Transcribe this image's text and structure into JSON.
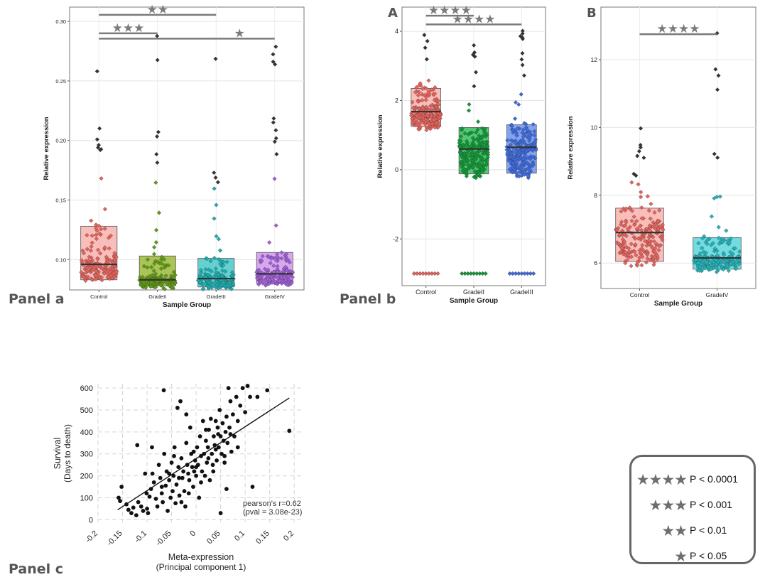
{
  "panel_labels": {
    "a": "Panel a",
    "b": "Panel b",
    "c": "Panel c"
  },
  "legend": [
    {
      "stars": "★★★★",
      "text": "P < 0.0001"
    },
    {
      "stars": "★★★",
      "text": "P < 0.001"
    },
    {
      "stars": "★★",
      "text": "P < 0.01"
    },
    {
      "stars": "★",
      "text": "P < 0.05"
    }
  ],
  "chart_data": [
    {
      "id": "panel-a",
      "type": "box",
      "subtitle": "",
      "xlabel": "Sample Group",
      "ylabel": "Relative expression",
      "categories": [
        "Control",
        "GradeII",
        "GradeIII",
        "GradeIV"
      ],
      "colors": [
        "#f7a8a3",
        "#8fb020",
        "#33c0c2",
        "#c98be8"
      ],
      "dot_colors": [
        "#e8625b",
        "#5e9c12",
        "#1aaeb0",
        "#a05ed8"
      ],
      "ylim": [
        0.0745,
        0.312
      ],
      "yticks": [
        0.1,
        0.15,
        0.2,
        0.25,
        0.3
      ],
      "ytick_labels": [
        "0.10",
        "0.15",
        "0.20",
        "0.25",
        "0.30"
      ],
      "boxes": [
        {
          "q1": 0.083,
          "median": 0.096,
          "q3": 0.128
        },
        {
          "q1": 0.078,
          "median": 0.083,
          "q3": 0.103
        },
        {
          "q1": 0.077,
          "median": 0.084,
          "q3": 0.101
        },
        {
          "q1": 0.08,
          "median": 0.088,
          "q3": 0.106
        }
      ],
      "ranges": [
        [
          0.082,
          0.29
        ],
        [
          0.075,
          0.289
        ],
        [
          0.075,
          0.269
        ],
        [
          0.073,
          0.294
        ]
      ],
      "significance": [
        {
          "from": 0,
          "to": 2,
          "y": 0.3055,
          "stars": "★★"
        },
        {
          "from": 0,
          "to": 1,
          "y": 0.29,
          "stars": "★★★"
        },
        {
          "from": 0,
          "to": 3,
          "y": 0.2855,
          "stars": "★"
        }
      ]
    },
    {
      "id": "panel-b-A",
      "type": "box",
      "subtitle": "A",
      "xlabel": "Sample Group",
      "ylabel": "Relative expression",
      "categories": [
        "Control",
        "GradeII",
        "GradeIII"
      ],
      "colors": [
        "#f7a8a3",
        "#1db34a",
        "#5b84e8"
      ],
      "dot_colors": [
        "#e8625b",
        "#0f9a35",
        "#3d6be0"
      ],
      "ylim": [
        -3.35,
        4.7
      ],
      "yticks": [
        -2,
        0,
        2,
        4
      ],
      "ytick_labels": [
        "-2",
        "0",
        "2",
        "4"
      ],
      "boxes": [
        {
          "q1": 1.25,
          "median": 1.68,
          "q3": 2.35
        },
        {
          "q1": -0.12,
          "median": 0.6,
          "q3": 1.22
        },
        {
          "q1": -0.1,
          "median": 0.65,
          "q3": 1.3
        }
      ],
      "ranges": [
        [
          -0.75,
          4.2
        ],
        [
          -1.35,
          4.05
        ],
        [
          -1.15,
          4.35
        ]
      ],
      "floor_value": -3.0,
      "significance": [
        {
          "from": 0,
          "to": 1,
          "y": 4.45,
          "stars": "★★★★"
        },
        {
          "from": 0,
          "to": 2,
          "y": 4.2,
          "stars": "★★★★"
        }
      ]
    },
    {
      "id": "panel-b-B",
      "type": "box",
      "subtitle": "B",
      "xlabel": "Sample Group",
      "ylabel": "Relative expression",
      "categories": [
        "Control",
        "GradeIV"
      ],
      "colors": [
        "#f7a8a3",
        "#46d0d6"
      ],
      "dot_colors": [
        "#e8625b",
        "#20b5bc"
      ],
      "ylim": [
        5.25,
        13.55
      ],
      "yticks": [
        6,
        8,
        10,
        12
      ],
      "ytick_labels": [
        "6",
        "8",
        "10",
        "12"
      ],
      "boxes": [
        {
          "q1": 6.05,
          "median": 6.9,
          "q3": 7.62
        },
        {
          "q1": 5.82,
          "median": 6.15,
          "q3": 6.75
        }
      ],
      "ranges": [
        [
          5.9,
          10.0
        ],
        [
          5.1,
          13.1
        ]
      ],
      "significance": [
        {
          "from": 0,
          "to": 1,
          "y": 12.75,
          "stars": "★★★★"
        }
      ]
    },
    {
      "id": "panel-c",
      "type": "scatter",
      "xlabel": "Meta-expression",
      "xlabel2": "(Principal component 1)",
      "ylabel": "Survival",
      "ylabel2": "(Days to death)",
      "xlim": [
        -0.2,
        0.22
      ],
      "ylim": [
        -12,
        620
      ],
      "xticks": [
        -0.2,
        -0.15,
        -0.1,
        -0.05,
        0,
        0.05,
        0.1,
        0.15,
        0.2
      ],
      "xtick_labels": [
        "-0.2",
        "-0.15",
        "-0.1",
        "-0.05",
        "0",
        "0.05",
        "0.1",
        "0.15",
        "0.2"
      ],
      "yticks": [
        0,
        100,
        200,
        300,
        400,
        500,
        600
      ],
      "ytick_labels": [
        "0",
        "100",
        "200",
        "300",
        "400",
        "500",
        "600"
      ],
      "fit": {
        "x0": -0.16,
        "y0": 45,
        "x1": 0.19,
        "y1": 555
      },
      "annotation": [
        "pearson's r=0.62",
        "(pval = 3.08e-23)"
      ],
      "points": [
        [
          -0.158,
          100
        ],
        [
          -0.155,
          85
        ],
        [
          -0.152,
          150
        ],
        [
          -0.142,
          70
        ],
        [
          -0.138,
          45
        ],
        [
          -0.132,
          30
        ],
        [
          -0.128,
          55
        ],
        [
          -0.122,
          20
        ],
        [
          -0.118,
          80
        ],
        [
          -0.112,
          60
        ],
        [
          -0.108,
          40
        ],
        [
          -0.104,
          210
        ],
        [
          -0.101,
          120
        ],
        [
          -0.098,
          30
        ],
        [
          -0.095,
          105
        ],
        [
          -0.092,
          140
        ],
        [
          -0.089,
          210
        ],
        [
          -0.086,
          170
        ],
        [
          -0.082,
          95
        ],
        [
          -0.079,
          60
        ],
        [
          -0.076,
          250
        ],
        [
          -0.073,
          190
        ],
        [
          -0.07,
          120
        ],
        [
          -0.068,
          80
        ],
        [
          -0.065,
          300
        ],
        [
          -0.062,
          155
        ],
        [
          -0.06,
          220
        ],
        [
          -0.058,
          40
        ],
        [
          -0.055,
          180
        ],
        [
          -0.052,
          100
        ],
        [
          -0.05,
          260
        ],
        [
          -0.048,
          130
        ],
        [
          -0.046,
          200
        ],
        [
          -0.044,
          330
        ],
        [
          -0.042,
          75
        ],
        [
          -0.04,
          160
        ],
        [
          -0.038,
          510
        ],
        [
          -0.036,
          240
        ],
        [
          -0.034,
          110
        ],
        [
          -0.032,
          540
        ],
        [
          -0.03,
          280
        ],
        [
          -0.028,
          190
        ],
        [
          -0.026,
          220
        ],
        [
          -0.024,
          130
        ],
        [
          -0.022,
          60
        ],
        [
          -0.02,
          350
        ],
        [
          -0.018,
          250
        ],
        [
          -0.016,
          210
        ],
        [
          -0.014,
          180
        ],
        [
          -0.012,
          420
        ],
        [
          -0.01,
          300
        ],
        [
          -0.008,
          240
        ],
        [
          -0.006,
          150
        ],
        [
          -0.004,
          220
        ],
        [
          -0.002,
          270
        ],
        [
          0.0,
          200
        ],
        [
          0.002,
          330
        ],
        [
          0.004,
          250
        ],
        [
          0.006,
          100
        ],
        [
          0.008,
          380
        ],
        [
          0.01,
          290
        ],
        [
          0.012,
          220
        ],
        [
          0.014,
          450
        ],
        [
          0.016,
          300
        ],
        [
          0.018,
          200
        ],
        [
          0.02,
          360
        ],
        [
          0.022,
          260
        ],
        [
          0.024,
          330
        ],
        [
          0.026,
          410
        ],
        [
          0.028,
          180
        ],
        [
          0.03,
          460
        ],
        [
          0.032,
          300
        ],
        [
          0.034,
          250
        ],
        [
          0.036,
          380
        ],
        [
          0.038,
          340
        ],
        [
          0.04,
          450
        ],
        [
          0.042,
          270
        ],
        [
          0.044,
          420
        ],
        [
          0.046,
          330
        ],
        [
          0.048,
          500
        ],
        [
          0.05,
          380
        ],
        [
          0.052,
          300
        ],
        [
          0.054,
          440
        ],
        [
          0.056,
          360
        ],
        [
          0.058,
          260
        ],
        [
          0.06,
          400
        ],
        [
          0.062,
          470
        ],
        [
          0.064,
          350
        ],
        [
          0.066,
          600
        ],
        [
          0.068,
          420
        ],
        [
          0.07,
          540
        ],
        [
          0.072,
          310
        ],
        [
          0.075,
          480
        ],
        [
          0.078,
          380
        ],
        [
          0.082,
          560
        ],
        [
          0.085,
          450
        ],
        [
          0.09,
          520
        ],
        [
          0.095,
          600
        ],
        [
          0.1,
          490
        ],
        [
          0.105,
          610
        ],
        [
          0.11,
          560
        ],
        [
          0.115,
          150
        ],
        [
          0.125,
          560
        ],
        [
          0.145,
          590
        ],
        [
          0.19,
          405
        ],
        [
          -0.066,
          590
        ],
        [
          -0.02,
          480
        ],
        [
          0.05,
          30
        ],
        [
          0.062,
          140
        ],
        [
          -0.09,
          330
        ],
        [
          -0.12,
          340
        ],
        [
          -0.03,
          80
        ],
        [
          0.0,
          240
        ],
        [
          0.02,
          410
        ],
        [
          0.035,
          220
        ],
        [
          0.07,
          390
        ],
        [
          -0.045,
          290
        ],
        [
          -0.015,
          120
        ],
        [
          0.01,
          170
        ],
        [
          0.04,
          320
        ],
        [
          -0.07,
          150
        ],
        [
          -0.1,
          50
        ],
        [
          0.058,
          290
        ],
        [
          0.085,
          330
        ],
        [
          -0.055,
          210
        ],
        [
          -0.035,
          190
        ],
        [
          0.025,
          280
        ],
        [
          0.045,
          390
        ],
        [
          -0.005,
          310
        ]
      ]
    }
  ]
}
